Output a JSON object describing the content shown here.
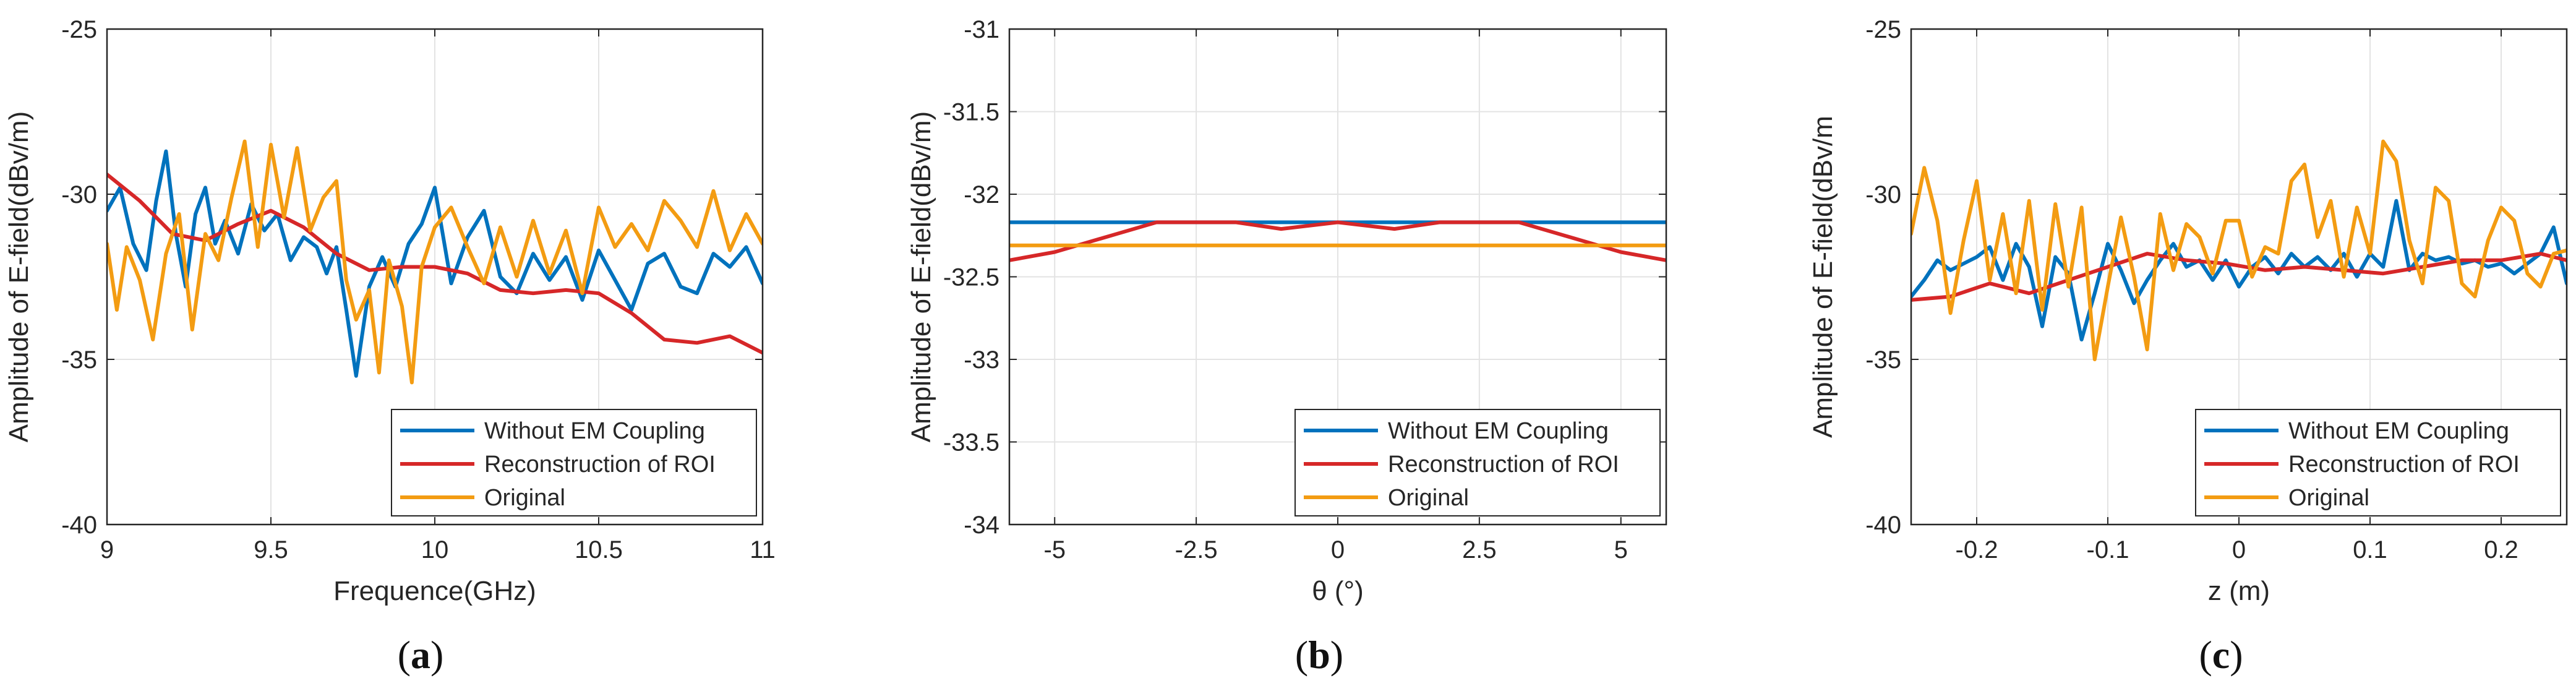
{
  "colors": {
    "without": "#0072BD",
    "recon": "#D62728",
    "original": "#F39C12",
    "grid": "#e3e3e3",
    "axis": "#262626"
  },
  "chart_data": [
    {
      "id": "a",
      "type": "line",
      "caption": "(a)",
      "xlabel": "Frequence(GHz)",
      "ylabel": "Amplitude of E-field(dBv/m)",
      "xlim": [
        9,
        11
      ],
      "ylim": [
        -40,
        -25
      ],
      "xticks": [
        9,
        9.5,
        10,
        10.5,
        11
      ],
      "xtick_labels": [
        "9",
        "9.5",
        "10",
        "10.5",
        "11"
      ],
      "yticks": [
        -40,
        -35,
        -30,
        -25
      ],
      "ytick_labels": [
        "-40",
        "-35",
        "-30",
        "-25"
      ],
      "grid": true,
      "legend_position": "bottom-right",
      "series": [
        {
          "name": "Without EM Coupling",
          "color_key": "without",
          "x": [
            9.0,
            9.04,
            9.08,
            9.12,
            9.15,
            9.18,
            9.21,
            9.24,
            9.27,
            9.3,
            9.33,
            9.36,
            9.4,
            9.44,
            9.48,
            9.52,
            9.56,
            9.6,
            9.64,
            9.67,
            9.7,
            9.73,
            9.76,
            9.8,
            9.84,
            9.88,
            9.92,
            9.96,
            10.0,
            10.05,
            10.1,
            10.15,
            10.2,
            10.25,
            10.3,
            10.35,
            10.4,
            10.45,
            10.5,
            10.55,
            10.6,
            10.65,
            10.7,
            10.75,
            10.8,
            10.85,
            10.9,
            10.95,
            11.0
          ],
          "y": [
            -30.5,
            -29.8,
            -31.5,
            -32.3,
            -30.2,
            -28.7,
            -31.2,
            -32.8,
            -30.6,
            -29.8,
            -31.5,
            -30.8,
            -31.8,
            -30.3,
            -31.1,
            -30.6,
            -32.0,
            -31.3,
            -31.6,
            -32.4,
            -31.6,
            -33.5,
            -35.5,
            -32.8,
            -31.9,
            -32.8,
            -31.5,
            -30.9,
            -29.8,
            -32.7,
            -31.3,
            -30.5,
            -32.5,
            -33.0,
            -31.8,
            -32.6,
            -31.9,
            -33.2,
            -31.7,
            -32.6,
            -33.5,
            -32.1,
            -31.8,
            -32.8,
            -33.0,
            -31.8,
            -32.2,
            -31.6,
            -32.7
          ]
        },
        {
          "name": "Reconstruction of ROI",
          "color_key": "recon",
          "x": [
            9.0,
            9.1,
            9.2,
            9.3,
            9.4,
            9.5,
            9.6,
            9.7,
            9.8,
            9.9,
            10.0,
            10.1,
            10.2,
            10.3,
            10.4,
            10.5,
            10.6,
            10.7,
            10.8,
            10.9,
            11.0
          ],
          "y": [
            -29.4,
            -30.2,
            -31.2,
            -31.4,
            -30.9,
            -30.5,
            -31.0,
            -31.8,
            -32.3,
            -32.2,
            -32.2,
            -32.4,
            -32.9,
            -33.0,
            -32.9,
            -33.0,
            -33.6,
            -34.4,
            -34.5,
            -34.3,
            -34.8
          ]
        },
        {
          "name": "Original",
          "color_key": "original",
          "x": [
            9.0,
            9.03,
            9.06,
            9.1,
            9.14,
            9.18,
            9.22,
            9.26,
            9.3,
            9.34,
            9.38,
            9.42,
            9.46,
            9.5,
            9.54,
            9.58,
            9.62,
            9.66,
            9.7,
            9.73,
            9.76,
            9.8,
            9.83,
            9.86,
            9.9,
            9.93,
            9.96,
            10.0,
            10.05,
            10.1,
            10.15,
            10.2,
            10.25,
            10.3,
            10.35,
            10.4,
            10.45,
            10.5,
            10.55,
            10.6,
            10.65,
            10.7,
            10.75,
            10.8,
            10.85,
            10.9,
            10.95,
            11.0
          ],
          "y": [
            -31.5,
            -33.5,
            -31.6,
            -32.6,
            -34.4,
            -31.8,
            -30.6,
            -34.1,
            -31.2,
            -32.0,
            -30.1,
            -28.4,
            -31.6,
            -28.5,
            -30.7,
            -28.6,
            -31.1,
            -30.1,
            -29.6,
            -32.6,
            -33.8,
            -32.9,
            -35.4,
            -32.0,
            -33.4,
            -35.7,
            -32.2,
            -31.0,
            -30.4,
            -31.6,
            -32.7,
            -31.0,
            -32.5,
            -30.8,
            -32.4,
            -31.1,
            -33.0,
            -30.4,
            -31.6,
            -30.9,
            -31.7,
            -30.2,
            -30.8,
            -31.6,
            -29.9,
            -31.7,
            -30.6,
            -31.5
          ]
        }
      ]
    },
    {
      "id": "b",
      "type": "line",
      "caption": "(b)",
      "xlabel": "θ (°)",
      "ylabel": "Amplitude of E-field(dBv/m)",
      "xlim": [
        -5.8,
        5.8
      ],
      "ylim": [
        -34,
        -31
      ],
      "xticks": [
        -5,
        -2.5,
        0,
        2.5,
        5
      ],
      "xtick_labels": [
        "-5",
        "-2.5",
        "0",
        "2.5",
        "5"
      ],
      "yticks": [
        -34,
        -33.5,
        -33,
        -32.5,
        -32,
        -31.5,
        -31
      ],
      "ytick_labels": [
        "-34",
        "-33.5",
        "-33",
        "-32.5",
        "-32",
        "-31.5",
        "-31"
      ],
      "grid": true,
      "legend_position": "bottom-right",
      "series": [
        {
          "name": "Without EM Coupling",
          "color_key": "without",
          "x": [
            -5.8,
            5.8
          ],
          "y": [
            -32.17,
            -32.17
          ]
        },
        {
          "name": "Reconstruction of ROI",
          "color_key": "recon",
          "x": [
            -5.8,
            -5.0,
            -4.0,
            -3.2,
            -2.4,
            -1.8,
            -1.0,
            0.0,
            1.0,
            1.8,
            2.4,
            3.2,
            4.0,
            5.0,
            5.8
          ],
          "y": [
            -32.4,
            -32.35,
            -32.25,
            -32.17,
            -32.17,
            -32.17,
            -32.21,
            -32.17,
            -32.21,
            -32.17,
            -32.17,
            -32.17,
            -32.25,
            -32.35,
            -32.4
          ]
        },
        {
          "name": "Original",
          "color_key": "original",
          "x": [
            -5.8,
            5.8
          ],
          "y": [
            -32.31,
            -32.31
          ]
        }
      ]
    },
    {
      "id": "c",
      "type": "line",
      "caption": "(c)",
      "xlabel": "z (m)",
      "ylabel": "Amplitude of E-field(dBv/m",
      "xlim": [
        -0.25,
        0.25
      ],
      "ylim": [
        -40,
        -25
      ],
      "xticks": [
        -0.2,
        -0.1,
        0,
        0.1,
        0.2
      ],
      "xtick_labels": [
        "-0.2",
        "-0.1",
        "0",
        "0.1",
        "0.2"
      ],
      "yticks": [
        -40,
        -35,
        -30,
        -25
      ],
      "ytick_labels": [
        "-40",
        "-35",
        "-30",
        "-25"
      ],
      "grid": true,
      "legend_position": "bottom-right",
      "series": [
        {
          "name": "Without EM Coupling",
          "color_key": "without",
          "x": [
            -0.25,
            -0.24,
            -0.23,
            -0.22,
            -0.2,
            -0.19,
            -0.18,
            -0.17,
            -0.16,
            -0.15,
            -0.14,
            -0.13,
            -0.12,
            -0.11,
            -0.1,
            -0.09,
            -0.08,
            -0.07,
            -0.06,
            -0.05,
            -0.04,
            -0.03,
            -0.02,
            -0.01,
            0.0,
            0.01,
            0.02,
            0.03,
            0.04,
            0.05,
            0.06,
            0.07,
            0.08,
            0.09,
            0.1,
            0.11,
            0.12,
            0.13,
            0.14,
            0.15,
            0.16,
            0.17,
            0.18,
            0.19,
            0.2,
            0.21,
            0.22,
            0.23,
            0.24,
            0.25
          ],
          "y": [
            -33.1,
            -32.6,
            -32.0,
            -32.3,
            -31.9,
            -31.6,
            -32.6,
            -31.5,
            -32.2,
            -34.0,
            -31.9,
            -32.4,
            -34.4,
            -33.0,
            -31.5,
            -32.3,
            -33.3,
            -32.6,
            -32.0,
            -31.5,
            -32.2,
            -32.0,
            -32.6,
            -32.0,
            -32.8,
            -32.2,
            -31.9,
            -32.4,
            -31.8,
            -32.2,
            -31.9,
            -32.3,
            -31.8,
            -32.5,
            -31.8,
            -32.2,
            -30.2,
            -32.3,
            -31.8,
            -32.0,
            -31.9,
            -32.1,
            -32.0,
            -32.2,
            -32.1,
            -32.4,
            -32.1,
            -31.8,
            -31.0,
            -32.7
          ]
        },
        {
          "name": "Reconstruction of ROI",
          "color_key": "recon",
          "x": [
            -0.25,
            -0.22,
            -0.19,
            -0.16,
            -0.13,
            -0.1,
            -0.07,
            -0.04,
            -0.01,
            0.02,
            0.05,
            0.08,
            0.11,
            0.14,
            0.17,
            0.2,
            0.23,
            0.25
          ],
          "y": [
            -33.2,
            -33.1,
            -32.7,
            -33.0,
            -32.6,
            -32.2,
            -31.8,
            -32.0,
            -32.1,
            -32.3,
            -32.2,
            -32.3,
            -32.4,
            -32.2,
            -32.0,
            -32.0,
            -31.8,
            -32.0
          ]
        },
        {
          "name": "Original",
          "color_key": "original",
          "x": [
            -0.25,
            -0.24,
            -0.23,
            -0.22,
            -0.21,
            -0.2,
            -0.19,
            -0.18,
            -0.17,
            -0.16,
            -0.15,
            -0.14,
            -0.13,
            -0.12,
            -0.11,
            -0.1,
            -0.09,
            -0.08,
            -0.07,
            -0.06,
            -0.05,
            -0.04,
            -0.03,
            -0.02,
            -0.01,
            0.0,
            0.01,
            0.02,
            0.03,
            0.04,
            0.05,
            0.06,
            0.07,
            0.08,
            0.09,
            0.1,
            0.11,
            0.12,
            0.13,
            0.14,
            0.15,
            0.16,
            0.17,
            0.18,
            0.19,
            0.2,
            0.21,
            0.22,
            0.23,
            0.24,
            0.25
          ],
          "y": [
            -31.2,
            -29.2,
            -30.8,
            -33.6,
            -31.4,
            -29.6,
            -32.6,
            -30.6,
            -33.0,
            -30.2,
            -33.5,
            -30.3,
            -32.8,
            -30.4,
            -35.0,
            -32.8,
            -30.7,
            -32.5,
            -34.7,
            -30.6,
            -32.3,
            -30.9,
            -31.3,
            -32.4,
            -30.8,
            -30.8,
            -32.5,
            -31.6,
            -31.8,
            -29.6,
            -29.1,
            -31.3,
            -30.2,
            -32.5,
            -30.4,
            -31.8,
            -28.4,
            -29.0,
            -31.4,
            -32.7,
            -29.8,
            -30.2,
            -32.7,
            -33.1,
            -31.4,
            -30.4,
            -30.8,
            -32.4,
            -32.8,
            -31.8,
            -31.7
          ]
        }
      ]
    }
  ]
}
